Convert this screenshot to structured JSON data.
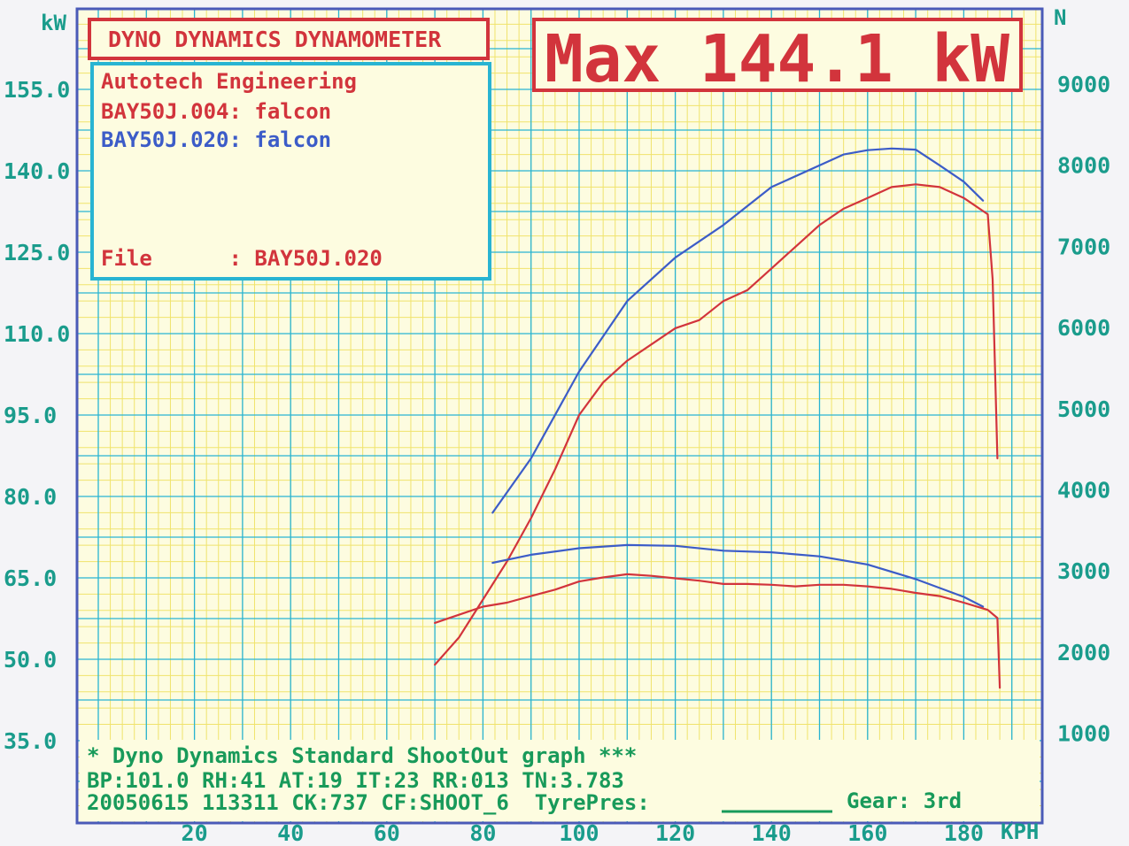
{
  "header": {
    "title": "DYNO DYNAMICS DYNAMOMETER",
    "max_label": "Max 144.1 kW"
  },
  "info": {
    "company": "Autotech Engineering",
    "run1": "BAY50J.004: falcon",
    "run2": "BAY50J.020: falcon",
    "file": "File      : BAY50J.020"
  },
  "footer": {
    "line1": "* Dyno Dynamics Standard ShootOut graph ***",
    "line2": "BP:101.0 RH:41 AT:19 IT:23  RR:013 TN:3.783",
    "line3_left": "20050615 113311 CK:737 CF:SHOOT_6  TyrePres:",
    "line3_right": "Gear: 3rd"
  },
  "colors": {
    "run_004": "#d2343c",
    "run_020": "#3c5cc8",
    "grid_minor": "#f0e36c",
    "grid_major": "#28b4d2",
    "axis_text": "#1a9c8c",
    "plot_bg": "#fdfce0"
  },
  "chart_data": {
    "type": "line",
    "xlabel": "KPH",
    "ylabel_left": "kW",
    "ylabel_right": "N",
    "xlim": [
      0,
      190
    ],
    "ylim_left": [
      27,
      170
    ],
    "ylim_right": [
      600,
      10200
    ],
    "grid": true,
    "x_ticks": [
      "20",
      "40",
      "60",
      "80",
      "100",
      "120",
      "140",
      "160",
      "180"
    ],
    "y_ticks_left": [
      "155.0",
      "140.0",
      "125.0",
      "110.0",
      "95.0",
      "80.0",
      "65.0",
      "50.0",
      "35.0"
    ],
    "y_ticks_right": [
      "9000",
      "8000",
      "7000",
      "6000",
      "5000",
      "4000",
      "3000",
      "2000",
      "1000"
    ],
    "series": [
      {
        "name": "BAY50J.020: falcon",
        "quantity": "power_kW",
        "axis": "left",
        "x": [
          82,
          90,
          100,
          110,
          120,
          130,
          140,
          150,
          155,
          160,
          165,
          170,
          175,
          180,
          184
        ],
        "y": [
          77,
          87,
          103,
          116,
          124,
          130,
          137,
          141,
          143,
          143.8,
          144.1,
          143.9,
          141,
          138,
          134.5
        ]
      },
      {
        "name": "BAY50J.004: falcon",
        "quantity": "power_kW",
        "axis": "left",
        "x": [
          70,
          75,
          80,
          85,
          90,
          95,
          100,
          105,
          110,
          115,
          120,
          125,
          130,
          135,
          140,
          145,
          150,
          155,
          160,
          165,
          170,
          175,
          180,
          185,
          186,
          187
        ],
        "y": [
          49,
          54,
          61,
          68,
          76,
          85,
          95,
          101,
          105,
          108,
          111,
          112.5,
          116,
          118,
          122,
          126,
          130,
          133,
          135,
          137,
          137.5,
          137,
          135,
          132,
          120,
          87
        ]
      },
      {
        "name": "BAY50J.020: falcon",
        "quantity": "force_N",
        "axis": "right",
        "x": [
          82,
          90,
          100,
          110,
          120,
          130,
          140,
          150,
          160,
          170,
          180,
          184
        ],
        "y": [
          3100,
          3200,
          3280,
          3320,
          3310,
          3250,
          3230,
          3180,
          3080,
          2900,
          2680,
          2560
        ]
      },
      {
        "name": "BAY50J.004: falcon",
        "quantity": "force_N",
        "axis": "right",
        "x": [
          70,
          75,
          80,
          85,
          90,
          95,
          100,
          105,
          110,
          115,
          120,
          125,
          130,
          135,
          140,
          145,
          150,
          155,
          160,
          165,
          170,
          175,
          180,
          185,
          187,
          187.5
        ],
        "y": [
          2360,
          2460,
          2560,
          2610,
          2690,
          2770,
          2870,
          2920,
          2960,
          2940,
          2910,
          2880,
          2840,
          2840,
          2830,
          2810,
          2830,
          2830,
          2810,
          2780,
          2730,
          2690,
          2610,
          2520,
          2420,
          1560
        ]
      }
    ]
  }
}
